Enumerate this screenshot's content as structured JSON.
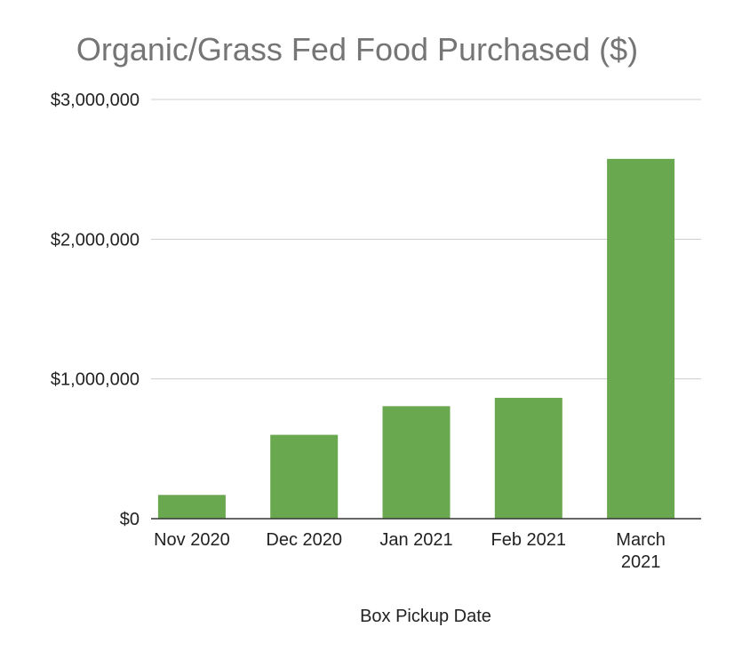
{
  "chart_data": {
    "type": "bar",
    "title": "Organic/Grass Fed Food Purchased ($)",
    "xlabel": "Box Pickup Date",
    "ylabel": "",
    "categories": [
      [
        "Nov 2020"
      ],
      [
        "Dec 2020"
      ],
      [
        "Jan 2021"
      ],
      [
        "Feb 2021"
      ],
      [
        "March",
        "2021"
      ]
    ],
    "values": [
      170000,
      600000,
      805000,
      865000,
      2575000
    ],
    "ylim": [
      0,
      3000000
    ],
    "yticks": [
      0,
      1000000,
      2000000,
      3000000
    ],
    "ytick_labels": [
      "$0",
      "$1,000,000",
      "$2,000,000",
      "$3,000,000"
    ],
    "grid": true,
    "legend": "none",
    "bar_color": "#6aa84f",
    "grid_color": "#cccccc",
    "axis_color": "#333333"
  }
}
